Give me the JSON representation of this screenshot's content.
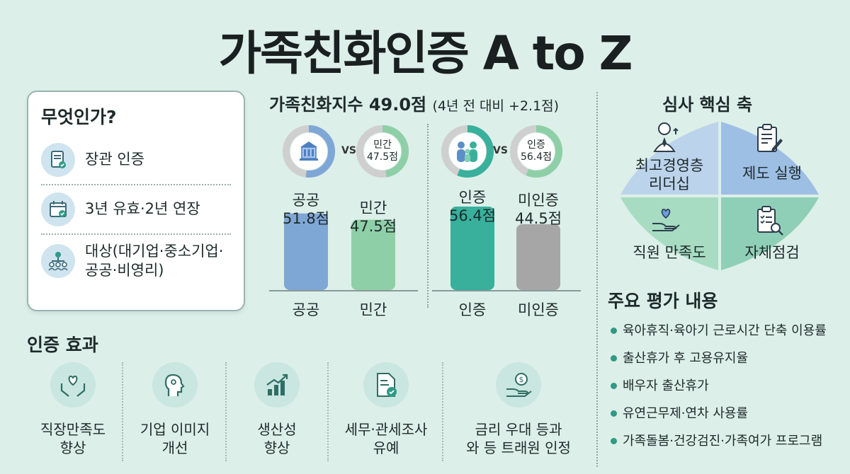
{
  "title": "가족친화인증 A to Z",
  "what": {
    "title": "무엇인가?",
    "items": [
      {
        "text": "장관 인증",
        "icon": "certificate-icon"
      },
      {
        "text": "3년 유효·2년 연장",
        "icon": "calendar-check-icon"
      },
      {
        "text": "대상(대기업·중소기업·\n공공·비영리)",
        "icon": "org-chart-icon"
      }
    ]
  },
  "index": {
    "title": "가족친화지수 49.0점",
    "subtitle": "(4년 전 대비 +2.1점)",
    "vs_label": "VS",
    "donuts": [
      {
        "label": "",
        "icon": "building-icon",
        "value": 51.8
      },
      {
        "label": "민간\n47.5점",
        "value": 47.5
      },
      {
        "label": "",
        "icon": "family-icon",
        "value": 56.4
      },
      {
        "label": "인증\n56.4점",
        "value": 56.4
      }
    ]
  },
  "chart_data": {
    "type": "bar",
    "categories": [
      "공공",
      "민간",
      "인증",
      "미인증"
    ],
    "values": [
      51.8,
      47.5,
      56.4,
      44.5
    ],
    "value_labels": [
      "공공\n51.8점",
      "민간\n47.5점",
      "인증\n56.4점",
      "미인증\n44.5점"
    ],
    "colors": [
      "#7fa7d6",
      "#8fcfa8",
      "#38b09c",
      "#a6a6a6"
    ],
    "ylim": [
      0,
      60
    ]
  },
  "review": {
    "title": "심사 핵심 축",
    "quadrants": [
      {
        "text": "최고경영층\n리더십",
        "icon": "executive-icon",
        "color": "#bcd3ec"
      },
      {
        "text": "제도 실행",
        "icon": "clipboard-pen-icon",
        "color": "#9ebfe4"
      },
      {
        "text": "직원 만족도",
        "icon": "heart-hand-icon",
        "color": "#a7dcc2"
      },
      {
        "text": "자체점검",
        "icon": "checklist-search-icon",
        "color": "#8fcfb7"
      }
    ]
  },
  "evaluation": {
    "title": "주요 평가 내용",
    "items": [
      "육아휴직·육아기 근로시간 단축 이용률",
      "출산휴가 후 고용유지율",
      "배우자 출산휴가",
      "유연근무제·연차 사용률",
      "가족돌봄·건강검진·가족여가 프로그램"
    ]
  },
  "effects": {
    "title": "인증 효과",
    "items": [
      {
        "text": "직장만족도\n향상",
        "icon": "heart-hands-icon"
      },
      {
        "text": "기업 이미지\n개선",
        "icon": "head-profile-icon"
      },
      {
        "text": "생산성\n향상",
        "icon": "growth-chart-icon"
      },
      {
        "text": "세무·관세조사\n유예",
        "icon": "tax-document-icon"
      },
      {
        "text": "금리 우대 등과\n와 등 트래원 인정",
        "icon": "money-hand-icon"
      }
    ]
  },
  "colors": {
    "accent": "#2f9a86",
    "background": "#dcefe8"
  }
}
